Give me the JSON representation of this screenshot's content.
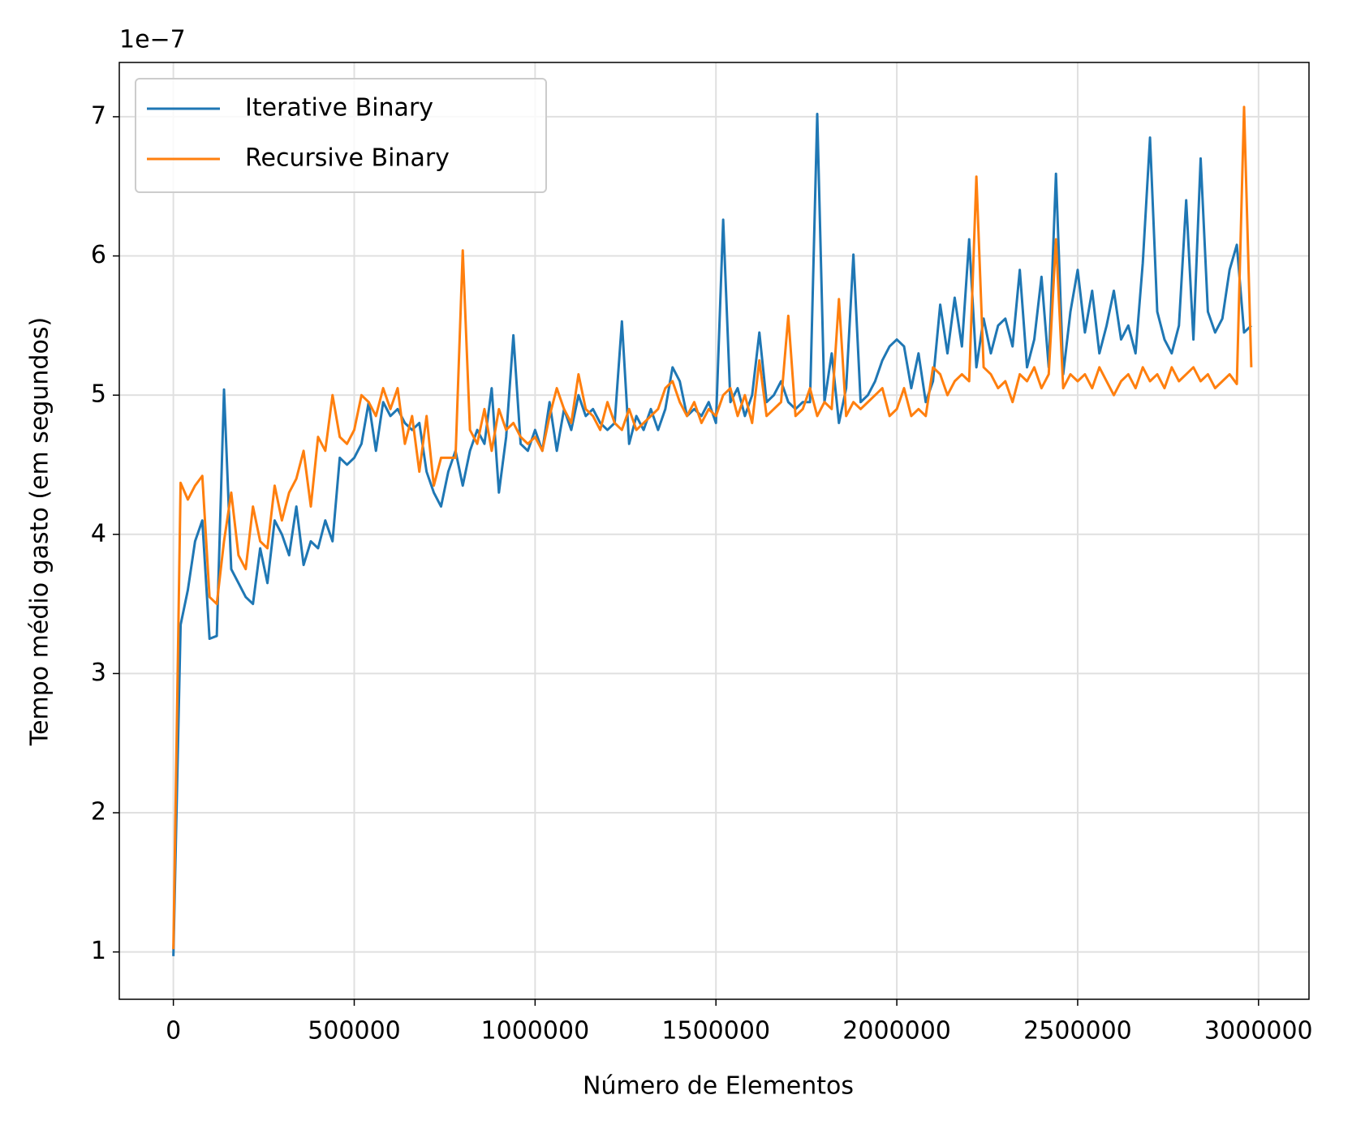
{
  "chart_data": {
    "type": "line",
    "xlabel": "Número de Elementos",
    "ylabel": "Tempo médio gasto (em segundos)",
    "y_offset_label": "1e−7",
    "x": [
      0,
      20000,
      40000,
      60000,
      80000,
      100000,
      120000,
      140000,
      160000,
      180000,
      200000,
      220000,
      240000,
      260000,
      280000,
      300000,
      320000,
      340000,
      360000,
      380000,
      400000,
      420000,
      440000,
      460000,
      480000,
      500000,
      520000,
      540000,
      560000,
      580000,
      600000,
      620000,
      640000,
      660000,
      680000,
      700000,
      720000,
      740000,
      760000,
      780000,
      800000,
      820000,
      840000,
      860000,
      880000,
      900000,
      920000,
      940000,
      960000,
      980000,
      1000000,
      1020000,
      1040000,
      1060000,
      1080000,
      1100000,
      1120000,
      1140000,
      1160000,
      1180000,
      1200000,
      1220000,
      1240000,
      1260000,
      1280000,
      1300000,
      1320000,
      1340000,
      1360000,
      1380000,
      1400000,
      1420000,
      1440000,
      1460000,
      1480000,
      1500000,
      1520000,
      1540000,
      1560000,
      1580000,
      1600000,
      1620000,
      1640000,
      1660000,
      1680000,
      1700000,
      1720000,
      1740000,
      1760000,
      1780000,
      1800000,
      1820000,
      1840000,
      1860000,
      1880000,
      1900000,
      1920000,
      1940000,
      1960000,
      1980000,
      2000000,
      2020000,
      2040000,
      2060000,
      2080000,
      2100000,
      2120000,
      2140000,
      2160000,
      2180000,
      2200000,
      2220000,
      2240000,
      2260000,
      2280000,
      2300000,
      2320000,
      2340000,
      2360000,
      2380000,
      2400000,
      2420000,
      2440000,
      2460000,
      2480000,
      2500000,
      2520000,
      2540000,
      2560000,
      2580000,
      2600000,
      2620000,
      2640000,
      2660000,
      2680000,
      2700000,
      2720000,
      2740000,
      2760000,
      2780000,
      2800000,
      2820000,
      2840000,
      2860000,
      2880000,
      2900000,
      2920000,
      2940000,
      2960000,
      2980000
    ],
    "series": [
      {
        "name": "Iterative Binary",
        "color": "#1f77b4",
        "values": [
          0.97,
          3.35,
          3.6,
          3.95,
          4.1,
          3.25,
          3.27,
          5.04,
          3.75,
          3.65,
          3.55,
          3.5,
          3.9,
          3.65,
          4.1,
          4.0,
          3.85,
          4.2,
          3.78,
          3.95,
          3.9,
          4.1,
          3.95,
          4.55,
          4.5,
          4.55,
          4.65,
          4.95,
          4.6,
          4.95,
          4.85,
          4.9,
          4.8,
          4.75,
          4.8,
          4.45,
          4.3,
          4.2,
          4.45,
          4.6,
          4.35,
          4.6,
          4.75,
          4.65,
          5.05,
          4.3,
          4.7,
          5.43,
          4.65,
          4.6,
          4.75,
          4.6,
          4.95,
          4.6,
          4.9,
          4.75,
          5.0,
          4.85,
          4.9,
          4.8,
          4.75,
          4.8,
          5.53,
          4.65,
          4.85,
          4.75,
          4.9,
          4.75,
          4.9,
          5.2,
          5.1,
          4.85,
          4.9,
          4.85,
          4.95,
          4.8,
          6.26,
          4.95,
          5.05,
          4.85,
          5.0,
          5.45,
          4.95,
          5.0,
          5.1,
          4.95,
          4.9,
          4.95,
          4.95,
          7.02,
          4.95,
          5.3,
          4.8,
          5.05,
          6.01,
          4.95,
          5.0,
          5.1,
          5.25,
          5.35,
          5.4,
          5.35,
          5.05,
          5.3,
          4.95,
          5.1,
          5.65,
          5.3,
          5.7,
          5.35,
          6.12,
          5.2,
          5.55,
          5.3,
          5.5,
          5.55,
          5.35,
          5.9,
          5.2,
          5.4,
          5.85,
          5.2,
          6.59,
          5.15,
          5.6,
          5.9,
          5.45,
          5.75,
          5.3,
          5.5,
          5.75,
          5.4,
          5.5,
          5.3,
          5.95,
          6.85,
          5.6,
          5.4,
          5.3,
          5.5,
          6.4,
          5.4,
          6.7,
          5.6,
          5.45,
          5.55,
          5.9,
          6.08,
          5.45,
          5.5
        ]
      },
      {
        "name": "Recursive Binary",
        "color": "#ff7f0e",
        "values": [
          1.02,
          4.37,
          4.25,
          4.35,
          4.42,
          3.55,
          3.5,
          3.95,
          4.3,
          3.85,
          3.75,
          4.2,
          3.95,
          3.9,
          4.35,
          4.1,
          4.3,
          4.4,
          4.6,
          4.2,
          4.7,
          4.6,
          5.0,
          4.7,
          4.65,
          4.75,
          5.0,
          4.95,
          4.85,
          5.05,
          4.9,
          5.05,
          4.65,
          4.85,
          4.45,
          4.85,
          4.35,
          4.55,
          4.55,
          4.55,
          6.04,
          4.75,
          4.65,
          4.9,
          4.6,
          4.9,
          4.75,
          4.8,
          4.7,
          4.65,
          4.7,
          4.6,
          4.85,
          5.05,
          4.9,
          4.8,
          5.15,
          4.9,
          4.85,
          4.75,
          4.95,
          4.8,
          4.75,
          4.9,
          4.75,
          4.8,
          4.85,
          4.9,
          5.05,
          5.1,
          4.95,
          4.85,
          4.95,
          4.8,
          4.9,
          4.85,
          5.0,
          5.05,
          4.85,
          5.0,
          4.8,
          5.25,
          4.85,
          4.9,
          4.95,
          5.57,
          4.85,
          4.9,
          5.05,
          4.85,
          4.95,
          4.9,
          5.69,
          4.85,
          4.95,
          4.9,
          4.95,
          5.0,
          5.05,
          4.85,
          4.9,
          5.05,
          4.85,
          4.9,
          4.85,
          5.2,
          5.15,
          5.0,
          5.1,
          5.15,
          5.1,
          6.57,
          5.2,
          5.15,
          5.05,
          5.1,
          4.95,
          5.15,
          5.1,
          5.2,
          5.05,
          5.15,
          6.12,
          5.05,
          5.15,
          5.1,
          5.15,
          5.05,
          5.2,
          5.1,
          5.0,
          5.1,
          5.15,
          5.05,
          5.2,
          5.1,
          5.15,
          5.05,
          5.2,
          5.1,
          5.15,
          5.2,
          5.1,
          5.15,
          5.05,
          5.1,
          5.15,
          5.08,
          7.07,
          5.2
        ]
      }
    ],
    "xlim": [
      -149500,
      3139500
    ],
    "ylim": [
      0.66,
      7.39
    ],
    "xticks": [
      0,
      500000,
      1000000,
      1500000,
      2000000,
      2500000,
      3000000
    ],
    "yticks": [
      1,
      2,
      3,
      4,
      5,
      6,
      7
    ],
    "grid": true,
    "legend": "upper left"
  }
}
